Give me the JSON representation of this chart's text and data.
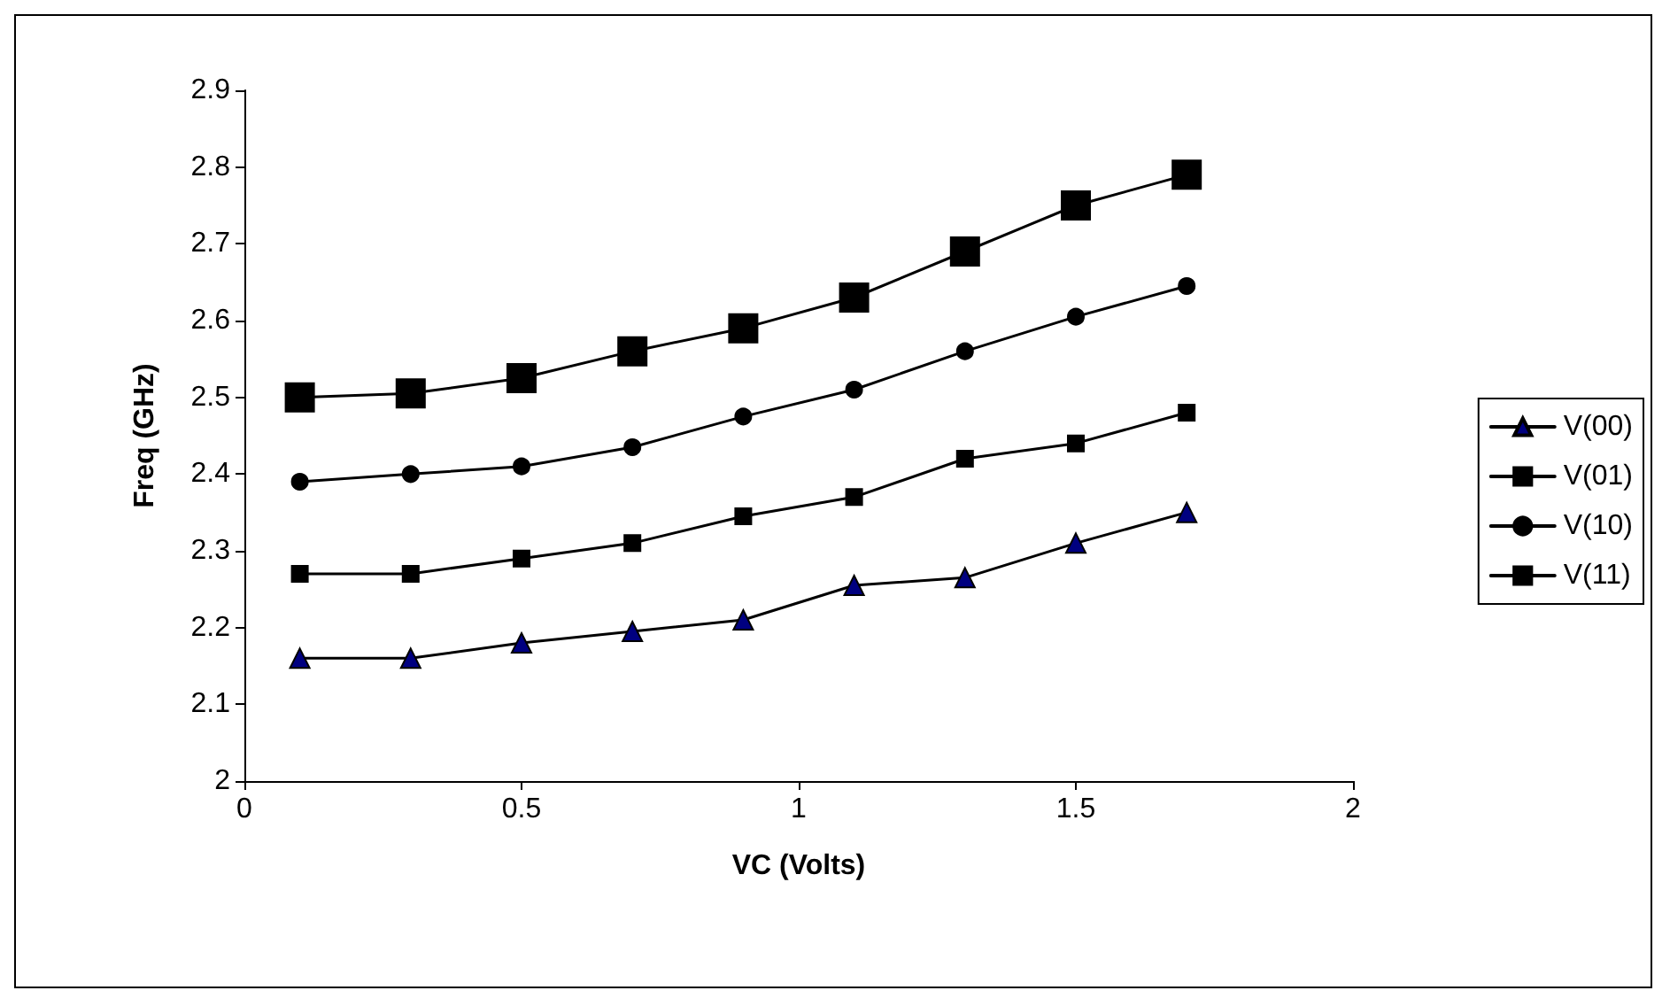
{
  "chart_data": {
    "type": "line",
    "xlabel": "VC (Volts)",
    "ylabel": "Freq (GHz)",
    "x": [
      0.1,
      0.3,
      0.5,
      0.7,
      0.9,
      1.1,
      1.3,
      1.5,
      1.7
    ],
    "series": [
      {
        "name": "V(00)",
        "color": "#000080",
        "marker": "triangle",
        "values": [
          2.16,
          2.16,
          2.18,
          2.195,
          2.21,
          2.255,
          2.265,
          2.31,
          2.35
        ]
      },
      {
        "name": "V(01)",
        "color": "#000000",
        "marker": "square",
        "values": [
          2.27,
          2.27,
          2.29,
          2.31,
          2.345,
          2.37,
          2.42,
          2.44,
          2.48
        ]
      },
      {
        "name": "V(10)",
        "color": "#000000",
        "marker": "circle",
        "values": [
          2.39,
          2.4,
          2.41,
          2.435,
          2.475,
          2.51,
          2.56,
          2.605,
          2.645
        ]
      },
      {
        "name": "V(11)",
        "color": "#000000",
        "marker": "square",
        "values": [
          2.5,
          2.505,
          2.525,
          2.56,
          2.59,
          2.63,
          2.69,
          2.75,
          2.79
        ]
      }
    ],
    "xlim": [
      0,
      2
    ],
    "xticks": [
      0,
      0.5,
      1,
      1.5,
      2
    ],
    "ylim": [
      2,
      2.9
    ],
    "yticks": [
      2,
      2.1,
      2.2,
      2.3,
      2.4,
      2.5,
      2.6,
      2.7,
      2.8,
      2.9
    ],
    "grid": false,
    "legend": "right",
    "line_style": "solid"
  }
}
